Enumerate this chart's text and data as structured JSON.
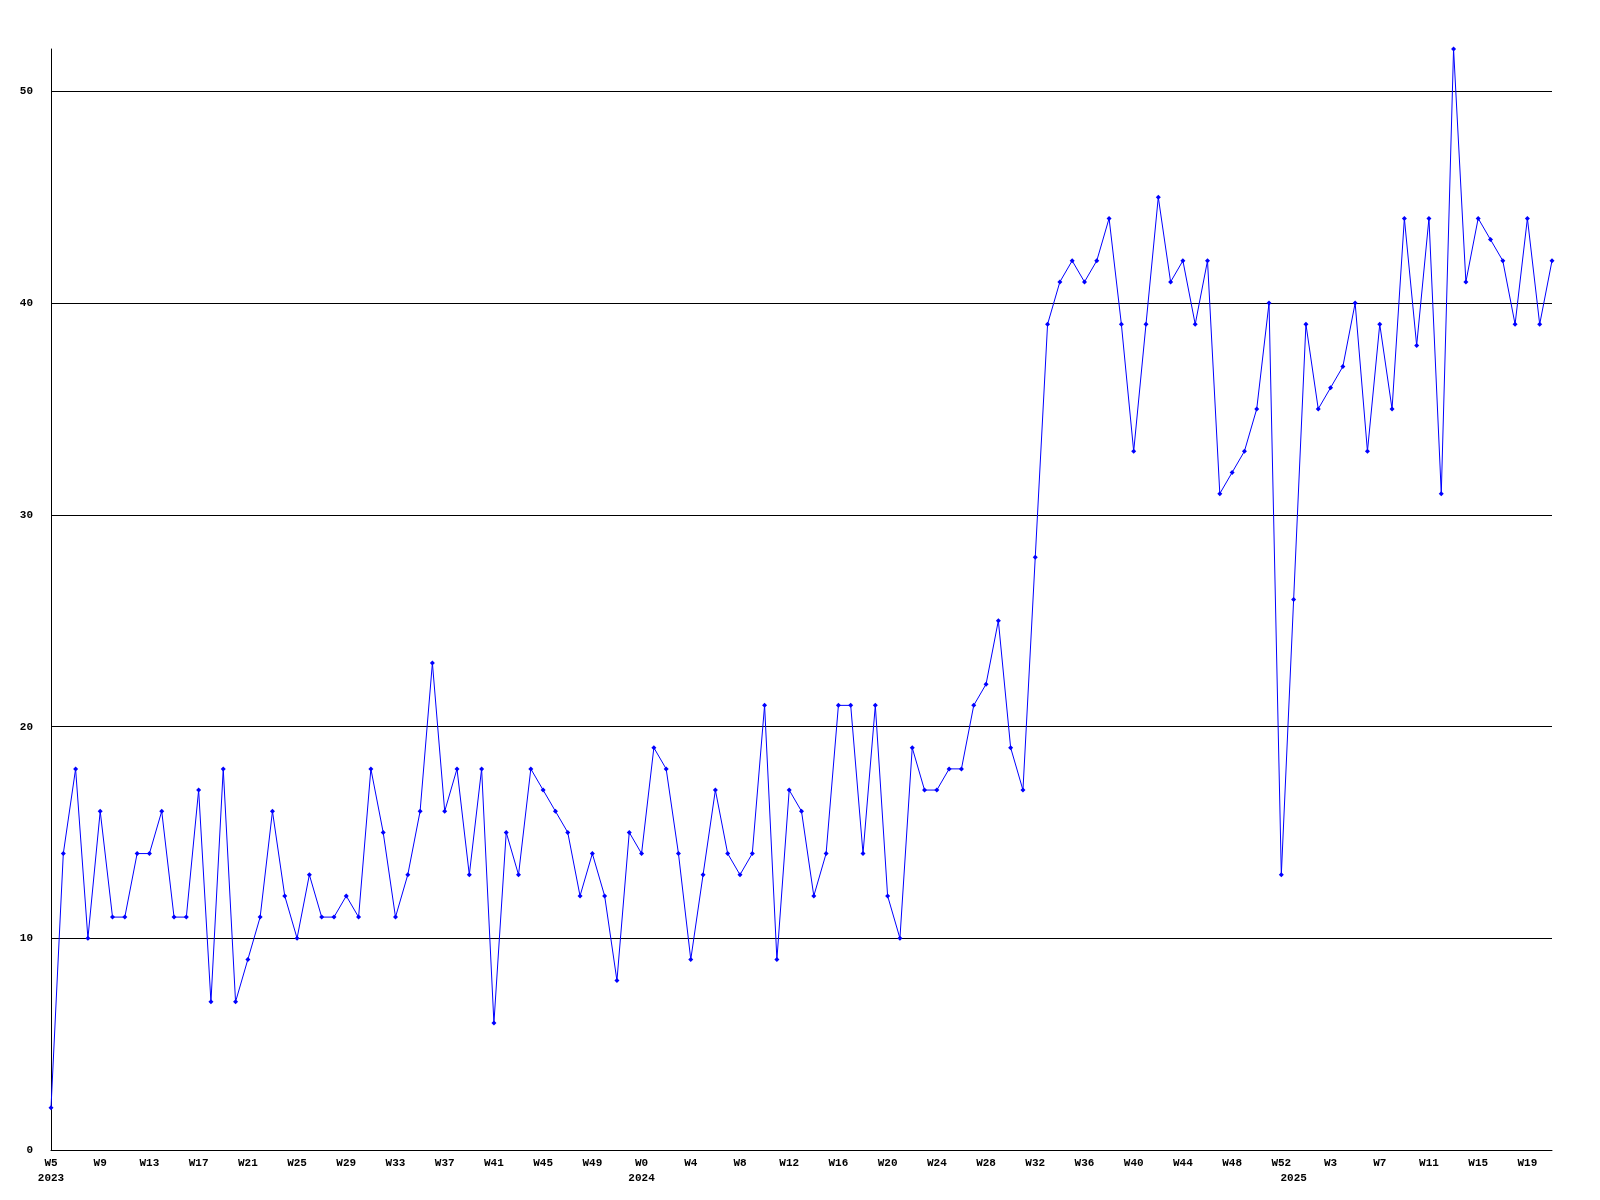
{
  "chart_data": {
    "type": "line",
    "categories": [
      "W5\n2023",
      null,
      null,
      null,
      "W9",
      null,
      null,
      null,
      "W13",
      null,
      null,
      null,
      "W17",
      null,
      null,
      null,
      "W21",
      null,
      null,
      null,
      "W25",
      null,
      null,
      null,
      "W29",
      null,
      null,
      null,
      "W33",
      null,
      null,
      null,
      "W37",
      null,
      null,
      null,
      "W41",
      null,
      null,
      null,
      "W45",
      null,
      null,
      null,
      "W49",
      null,
      null,
      null,
      "W0\n2024",
      null,
      null,
      null,
      "W4",
      null,
      null,
      null,
      "W8",
      null,
      null,
      null,
      "W12",
      null,
      null,
      null,
      "W16",
      null,
      null,
      null,
      "W20",
      null,
      null,
      null,
      "W24",
      null,
      null,
      null,
      "W28",
      null,
      null,
      null,
      "W32",
      null,
      null,
      null,
      "W36",
      null,
      null,
      null,
      "W40",
      null,
      null,
      null,
      "W44",
      null,
      null,
      null,
      "W48",
      null,
      null,
      null,
      "W52",
      "\n2025",
      null,
      null,
      "W3",
      null,
      null,
      null,
      "W7",
      null,
      null,
      null,
      "W11",
      null,
      null,
      null,
      "W15",
      null,
      null,
      null,
      "W19",
      null,
      null
    ],
    "series": [
      {
        "color": "#0000ff",
        "values": [
          2,
          14,
          18,
          10,
          16,
          11,
          11,
          14,
          14,
          16,
          11,
          11,
          17,
          7,
          18,
          7,
          9,
          11,
          16,
          12,
          10,
          13,
          11,
          11,
          12,
          11,
          18,
          15,
          11,
          13,
          16,
          23,
          16,
          18,
          13,
          18,
          6,
          15,
          13,
          18,
          17,
          16,
          15,
          12,
          14,
          12,
          8,
          15,
          14,
          19,
          18,
          14,
          9,
          13,
          17,
          14,
          13,
          14,
          21,
          9,
          17,
          16,
          12,
          14,
          21,
          21,
          14,
          21,
          12,
          10,
          19,
          17,
          17,
          18,
          18,
          21,
          22,
          25,
          19,
          17,
          28,
          39,
          41,
          42,
          41,
          42,
          44,
          39,
          33,
          39,
          45,
          41,
          42,
          39,
          42,
          31,
          32,
          33,
          35,
          40,
          13,
          26,
          39,
          35,
          36,
          37,
          40,
          33,
          39,
          35,
          44,
          38,
          44,
          31,
          52,
          41,
          44,
          43,
          42,
          39,
          44,
          39,
          42
        ]
      }
    ],
    "ylim": [
      0,
      52
    ],
    "yticks": [
      0,
      10,
      20,
      30,
      40,
      50
    ],
    "grid": "y",
    "marker": "diamond",
    "line_style": "solid"
  }
}
